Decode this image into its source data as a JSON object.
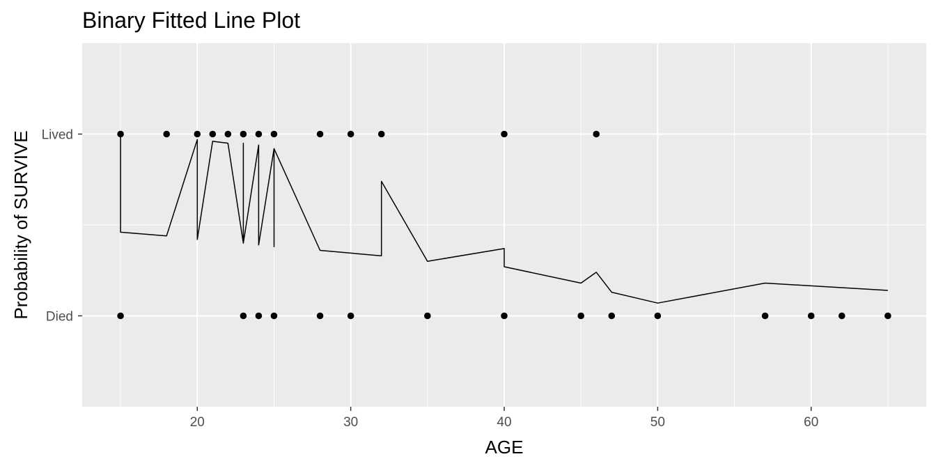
{
  "chart_data": {
    "type": "scatter",
    "title": "Binary Fitted Line Plot",
    "xlabel": "AGE",
    "ylabel": "Probability of SURVIVE",
    "xlim": [
      12.5,
      67.5
    ],
    "ylim": [
      -0.5,
      1.5
    ],
    "x_ticks": [
      20,
      30,
      40,
      50,
      60
    ],
    "y_ticks": [
      {
        "value": 0,
        "label": "Died"
      },
      {
        "value": 1,
        "label": "Lived"
      }
    ],
    "grid": true,
    "background": "#ebebeb",
    "grid_color": "#ffffff",
    "ink_color": "#000000",
    "points": [
      {
        "x": 15,
        "y": 1
      },
      {
        "x": 18,
        "y": 1
      },
      {
        "x": 20,
        "y": 1
      },
      {
        "x": 21,
        "y": 1
      },
      {
        "x": 22,
        "y": 1
      },
      {
        "x": 23,
        "y": 1
      },
      {
        "x": 24,
        "y": 1
      },
      {
        "x": 25,
        "y": 1
      },
      {
        "x": 28,
        "y": 1
      },
      {
        "x": 30,
        "y": 1
      },
      {
        "x": 32,
        "y": 1
      },
      {
        "x": 40,
        "y": 1
      },
      {
        "x": 46,
        "y": 1
      },
      {
        "x": 15,
        "y": 0
      },
      {
        "x": 23,
        "y": 0
      },
      {
        "x": 24,
        "y": 0
      },
      {
        "x": 25,
        "y": 0
      },
      {
        "x": 28,
        "y": 0
      },
      {
        "x": 30,
        "y": 0
      },
      {
        "x": 35,
        "y": 0
      },
      {
        "x": 40,
        "y": 0
      },
      {
        "x": 45,
        "y": 0
      },
      {
        "x": 47,
        "y": 0
      },
      {
        "x": 50,
        "y": 0
      },
      {
        "x": 57,
        "y": 0
      },
      {
        "x": 60,
        "y": 0
      },
      {
        "x": 62,
        "y": 0
      },
      {
        "x": 65,
        "y": 0
      }
    ],
    "fitted_line": [
      {
        "x": 15,
        "y": 1.0
      },
      {
        "x": 15,
        "y": 0.46
      },
      {
        "x": 18,
        "y": 0.44
      },
      {
        "x": 20,
        "y": 0.97
      },
      {
        "x": 20,
        "y": 0.42
      },
      {
        "x": 21,
        "y": 0.96
      },
      {
        "x": 22,
        "y": 0.95
      },
      {
        "x": 23,
        "y": 0.4
      },
      {
        "x": 23,
        "y": 0.95
      },
      {
        "x": 23,
        "y": 0.4
      },
      {
        "x": 24,
        "y": 0.94
      },
      {
        "x": 24,
        "y": 0.39
      },
      {
        "x": 25,
        "y": 0.92
      },
      {
        "x": 25,
        "y": 0.38
      },
      {
        "x": 25,
        "y": 0.92
      },
      {
        "x": 28,
        "y": 0.36
      },
      {
        "x": 32,
        "y": 0.33
      },
      {
        "x": 32,
        "y": 0.74
      },
      {
        "x": 35,
        "y": 0.3
      },
      {
        "x": 40,
        "y": 0.37
      },
      {
        "x": 40,
        "y": 0.27
      },
      {
        "x": 45,
        "y": 0.18
      },
      {
        "x": 46,
        "y": 0.24
      },
      {
        "x": 47,
        "y": 0.13
      },
      {
        "x": 50,
        "y": 0.07
      },
      {
        "x": 57,
        "y": 0.18
      },
      {
        "x": 65,
        "y": 0.14
      }
    ]
  }
}
